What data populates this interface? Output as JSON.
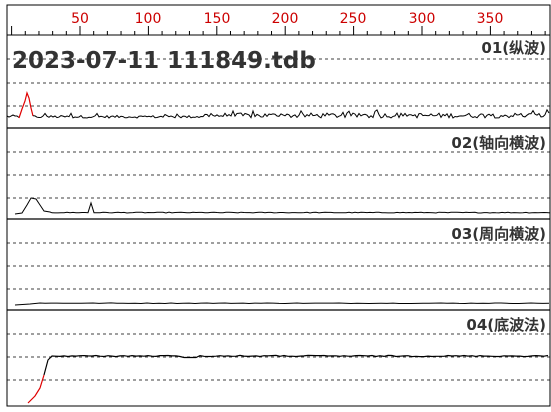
{
  "file_title": "2023-07-11 111849.tdb",
  "ruler": {
    "labels": [
      "50",
      "100",
      "150",
      "200",
      "250",
      "300",
      "350"
    ],
    "label_color": "#cc0000"
  },
  "channels": [
    {
      "label": "01(纵波)",
      "waveform": "longitudinal-wave-trace"
    },
    {
      "label": "02(轴向横波)",
      "waveform": "axial-shear-wave-trace"
    },
    {
      "label": "03(周向横波)",
      "waveform": "circumferential-shear-wave-trace"
    },
    {
      "label": "04(底波法)",
      "waveform": "bottom-wave-trace"
    }
  ],
  "colors": {
    "background": "#ffffff",
    "trace": "#000000",
    "trace_highlight": "#e00000",
    "grid": "#000000",
    "label_text": "#333333"
  }
}
